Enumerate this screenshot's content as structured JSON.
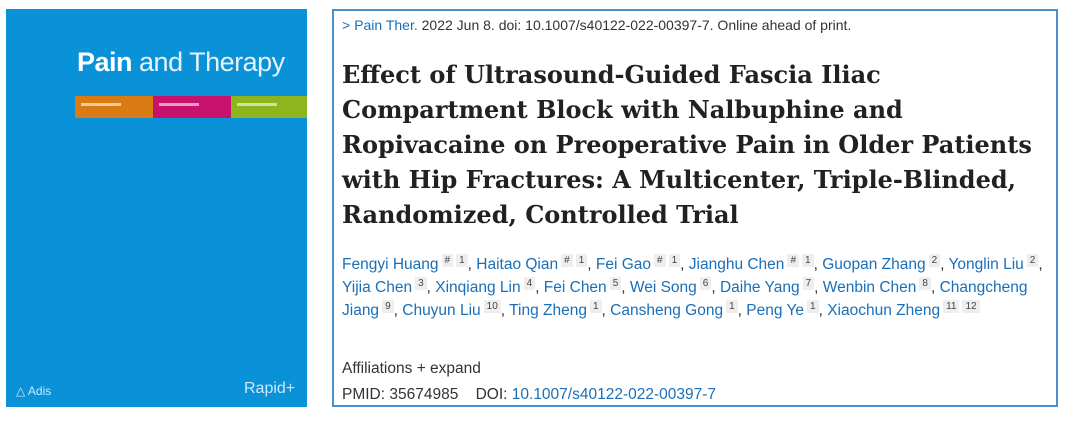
{
  "cover": {
    "title_bold": "Pain",
    "title_rest": " and Therapy",
    "publisher": "Adis",
    "badge": "Rapid+",
    "color": "#0992d8"
  },
  "citation": {
    "chevron": ">",
    "journal": "Pain Ther.",
    "rest": " 2022 Jun 8. doi: 10.1007/s40122-022-00397-7. Online ahead of print."
  },
  "title": "Effect of Ultrasound-Guided Fascia Iliac Compartment Block with Nalbuphine and Ropivacaine on Preoperative Pain in Older Patients with Hip Fractures: A Multicenter, Triple-Blinded, Randomized, Controlled Trial",
  "authors": [
    {
      "name": "Fengyi Huang",
      "sups": [
        "#",
        "1"
      ]
    },
    {
      "name": "Haitao Qian",
      "sups": [
        "#",
        "1"
      ]
    },
    {
      "name": "Fei Gao",
      "sups": [
        "#",
        "1"
      ]
    },
    {
      "name": "Jianghu Chen",
      "sups": [
        "#",
        "1"
      ]
    },
    {
      "name": "Guopan Zhang",
      "sups": [
        "2"
      ]
    },
    {
      "name": "Yonglin Liu",
      "sups": [
        "2"
      ]
    },
    {
      "name": "Yijia Chen",
      "sups": [
        "3"
      ]
    },
    {
      "name": "Xinqiang Lin",
      "sups": [
        "4"
      ]
    },
    {
      "name": "Fei Chen",
      "sups": [
        "5"
      ]
    },
    {
      "name": "Wei Song",
      "sups": [
        "6"
      ]
    },
    {
      "name": "Daihe Yang",
      "sups": [
        "7"
      ]
    },
    {
      "name": "Wenbin Chen",
      "sups": [
        "8"
      ]
    },
    {
      "name": "Changcheng Jiang",
      "sups": [
        "9"
      ]
    },
    {
      "name": "Chuyun Liu",
      "sups": [
        "10"
      ]
    },
    {
      "name": "Ting Zheng",
      "sups": [
        "1"
      ]
    },
    {
      "name": "Cansheng Gong",
      "sups": [
        "1"
      ]
    },
    {
      "name": "Peng Ye",
      "sups": [
        "1"
      ]
    },
    {
      "name": "Xiaochun Zheng",
      "sups": [
        "11",
        "12"
      ]
    }
  ],
  "affiliations": {
    "label": "Affiliations",
    "expand": "+ expand"
  },
  "ids": {
    "pmid_label": "PMID:",
    "pmid": "35674985",
    "doi_label": "DOI:",
    "doi": "10.1007/s40122-022-00397-7"
  }
}
